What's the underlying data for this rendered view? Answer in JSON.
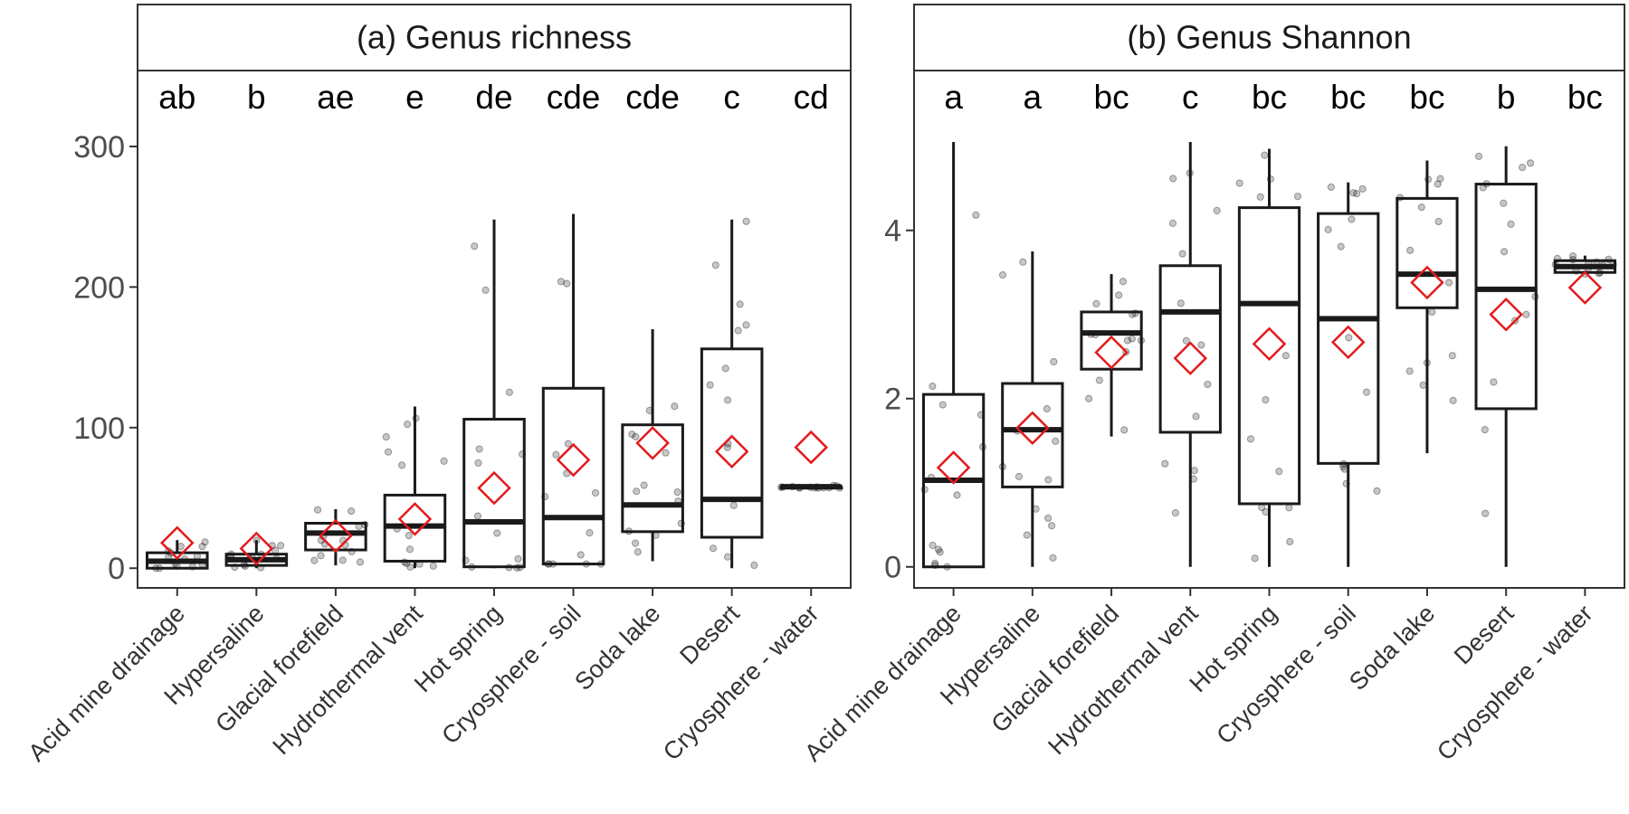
{
  "chart_data": [
    {
      "type": "box",
      "title": "(a) Genus richness",
      "xlabel": "",
      "ylabel": "",
      "ylim": [
        -14,
        354
      ],
      "yticks": [
        0,
        100,
        200,
        300
      ],
      "categories": [
        "Acid mine drainage",
        "Hypersaline",
        "Glacial forefield",
        "Hydrothermal vent",
        "Hot spring",
        "Cryosphere - soil",
        "Soda lake",
        "Desert",
        "Cryosphere - water"
      ],
      "letters": [
        "ab",
        "b",
        "ae",
        "e",
        "de",
        "cde",
        "cde",
        "c",
        "cd"
      ],
      "boxes": [
        {
          "min": 0,
          "q1": 0,
          "median": 5,
          "q3": 11,
          "max": 20,
          "mean": 18
        },
        {
          "min": 0,
          "q1": 2,
          "median": 6,
          "q3": 10,
          "max": 20,
          "mean": 14
        },
        {
          "min": 2,
          "q1": 13,
          "median": 25,
          "q3": 32,
          "max": 42,
          "mean": 23
        },
        {
          "min": 0,
          "q1": 5,
          "median": 30,
          "q3": 52,
          "max": 115,
          "mean": 35
        },
        {
          "min": 0,
          "q1": 1,
          "median": 33,
          "q3": 106,
          "max": 248,
          "mean": 57
        },
        {
          "min": 3,
          "q1": 3,
          "median": 36,
          "q3": 128,
          "max": 252,
          "mean": 77
        },
        {
          "min": 5,
          "q1": 26,
          "median": 45,
          "q3": 102,
          "max": 170,
          "mean": 89
        },
        {
          "min": 0,
          "q1": 22,
          "median": 49,
          "q3": 156,
          "max": 248,
          "mean": 83
        },
        {
          "min": 57,
          "q1": 57,
          "median": 58,
          "q3": 58,
          "max": 59,
          "mean": 86
        }
      ]
    },
    {
      "type": "box",
      "title": "(b) Genus Shannon",
      "xlabel": "",
      "ylabel": "",
      "ylim": [
        -0.25,
        5.9
      ],
      "yticks": [
        0,
        2,
        4
      ],
      "categories": [
        "Acid mine drainage",
        "Hypersaline",
        "Glacial forefield",
        "Hydrothermal vent",
        "Hot spring",
        "Cryosphere - soil",
        "Soda lake",
        "Desert",
        "Cryosphere - water"
      ],
      "letters": [
        "a",
        "a",
        "bc",
        "c",
        "bc",
        "bc",
        "bc",
        "b",
        "bc"
      ],
      "boxes": [
        {
          "min": 0,
          "q1": 0,
          "median": 1.03,
          "q3": 2.05,
          "max": 5.05,
          "mean": 1.18
        },
        {
          "min": 0,
          "q1": 0.95,
          "median": 1.63,
          "q3": 2.18,
          "max": 3.75,
          "mean": 1.65
        },
        {
          "min": 1.55,
          "q1": 2.35,
          "median": 2.78,
          "q3": 3.03,
          "max": 3.48,
          "mean": 2.55
        },
        {
          "min": 0,
          "q1": 1.6,
          "median": 3.03,
          "q3": 3.58,
          "max": 5.05,
          "mean": 2.48
        },
        {
          "min": 0,
          "q1": 0.75,
          "median": 3.13,
          "q3": 4.27,
          "max": 4.97,
          "mean": 2.65
        },
        {
          "min": 0,
          "q1": 1.23,
          "median": 2.95,
          "q3": 4.2,
          "max": 4.57,
          "mean": 2.67
        },
        {
          "min": 1.35,
          "q1": 3.08,
          "median": 3.48,
          "q3": 4.38,
          "max": 4.83,
          "mean": 3.38
        },
        {
          "min": 0,
          "q1": 1.88,
          "median": 3.3,
          "q3": 4.55,
          "max": 5.0,
          "mean": 3.0
        },
        {
          "min": 3.48,
          "q1": 3.5,
          "median": 3.57,
          "q3": 3.64,
          "max": 3.7,
          "mean": 3.32
        }
      ]
    }
  ],
  "colors": {
    "box_stroke": "#1a1a1a",
    "mean_marker": "#e31a1c",
    "jitter_point": "#000000",
    "strip_fill": "#ffffff",
    "panel_border": "#333333"
  }
}
